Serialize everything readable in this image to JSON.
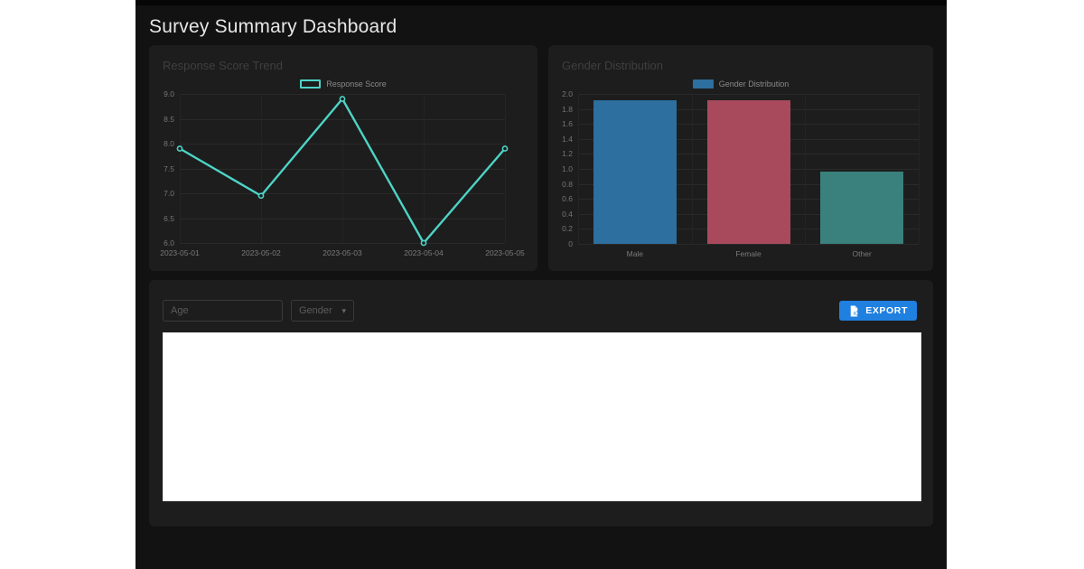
{
  "header": {
    "title": "Survey Summary Dashboard"
  },
  "filters": {
    "age_placeholder": "Age",
    "gender_label": "Gender",
    "caret_icon": "▾"
  },
  "toolbar": {
    "export_label": "EXPORT"
  },
  "colors": {
    "app_bg": "#121212",
    "card_bg": "#1d1d1d",
    "accent_blue": "#1f80e0",
    "line_teal": "#4dd4c6",
    "bar_blue": "#2d6f9e",
    "bar_red": "#a84a5c",
    "bar_teal": "#3a807d"
  },
  "chart_data": [
    {
      "type": "line",
      "title": "Response Score Trend",
      "legend": [
        "Response Score"
      ],
      "x": [
        "2023-05-01",
        "2023-05-02",
        "2023-05-03",
        "2023-05-04",
        "2023-05-05"
      ],
      "values": [
        7.9,
        6.95,
        8.9,
        6.0,
        7.9
      ],
      "ylim": [
        6.0,
        9.0
      ],
      "yticks": [
        9.0,
        8.5,
        8.0,
        7.5,
        7.0,
        6.5,
        6.0
      ],
      "ytick_labels": [
        "9.0",
        "8.5",
        "8.0",
        "7.5",
        "7.0",
        "6.5",
        "6.0"
      ],
      "xlabel": "",
      "ylabel": "",
      "grid": true,
      "legend_position": "top",
      "marker": "circle",
      "color": "#4dd4c6"
    },
    {
      "type": "bar",
      "title": "Gender Distribution",
      "legend": [
        "Gender Distribution"
      ],
      "categories": [
        "Male",
        "Female",
        "Other"
      ],
      "values": [
        2,
        2,
        1
      ],
      "colors": [
        "#2d6f9e",
        "#a84a5c",
        "#3a807d"
      ],
      "ylim": [
        0,
        2.087
      ],
      "yticks": [
        2.0,
        1.8,
        1.6,
        1.4,
        1.2,
        1.0,
        0.8,
        0.6,
        0.4,
        0.2,
        0
      ],
      "ytick_labels": [
        "2.0",
        "1.8",
        "1.6",
        "1.4",
        "1.2",
        "1.0",
        "0.8",
        "0.6",
        "0.4",
        "0.2",
        "0"
      ],
      "xlabel": "",
      "ylabel": "",
      "grid": true,
      "legend_position": "top"
    }
  ]
}
